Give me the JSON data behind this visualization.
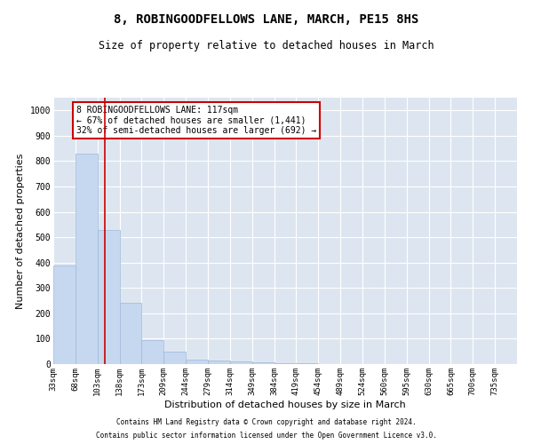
{
  "title": "8, ROBINGOODFELLOWS LANE, MARCH, PE15 8HS",
  "subtitle": "Size of property relative to detached houses in March",
  "xlabel": "Distribution of detached houses by size in March",
  "ylabel": "Number of detached properties",
  "bin_labels": [
    "33sqm",
    "68sqm",
    "103sqm",
    "138sqm",
    "173sqm",
    "209sqm",
    "244sqm",
    "279sqm",
    "314sqm",
    "349sqm",
    "384sqm",
    "419sqm",
    "454sqm",
    "489sqm",
    "524sqm",
    "560sqm",
    "595sqm",
    "630sqm",
    "665sqm",
    "700sqm",
    "735sqm"
  ],
  "bar_heights": [
    390,
    830,
    530,
    240,
    95,
    50,
    18,
    15,
    10,
    7,
    5,
    5,
    0,
    0,
    0,
    0,
    0,
    0,
    0,
    0,
    0
  ],
  "bar_color": "#c5d8f0",
  "bar_edge_color": "#a0b8d8",
  "red_line_bin": 2.35,
  "annotation_text": "8 ROBINGOODFELLOWS LANE: 117sqm\n← 67% of detached houses are smaller (1,441)\n32% of semi-detached houses are larger (692) →",
  "annotation_box_color": "#ffffff",
  "annotation_box_edge": "#cc0000",
  "red_line_color": "#cc0000",
  "background_color": "#ffffff",
  "plot_bg_color": "#dde6f0",
  "grid_color": "#ffffff",
  "footnote1": "Contains HM Land Registry data © Crown copyright and database right 2024.",
  "footnote2": "Contains public sector information licensed under the Open Government Licence v3.0.",
  "ylim": [
    0,
    1050
  ],
  "yticks": [
    0,
    100,
    200,
    300,
    400,
    500,
    600,
    700,
    800,
    900,
    1000
  ],
  "title_fontsize": 10,
  "subtitle_fontsize": 8.5,
  "tick_fontsize": 6.5,
  "label_fontsize": 8,
  "footnote_fontsize": 5.5,
  "annot_fontsize": 7
}
